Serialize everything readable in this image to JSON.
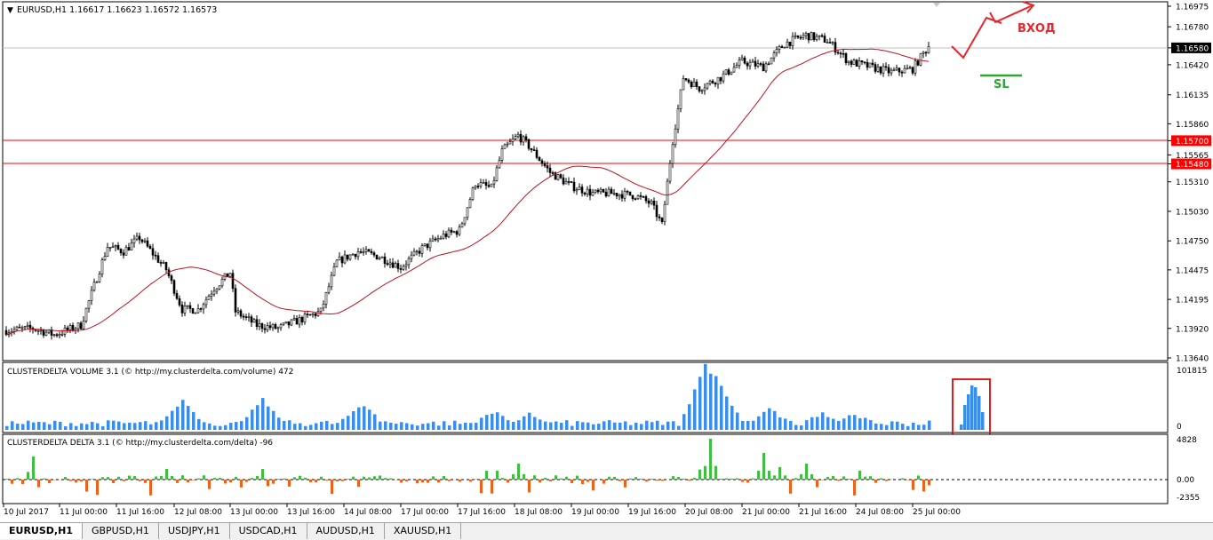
{
  "main_chart": {
    "header_prefix": "▼",
    "header": "EURUSD,H1  1.16617 1.16623 1.16572 1.16573",
    "price_labels": [
      "1.16975",
      "1.16780",
      "1.16580",
      "1.16420",
      "1.16135",
      "1.15860",
      "1.15700",
      "1.15565",
      "1.15480",
      "1.15310",
      "1.15030",
      "1.14750",
      "1.14475",
      "1.14195",
      "1.13920",
      "1.13640"
    ],
    "current_price": "1.16580",
    "level_lines": [
      {
        "value": "1.15700",
        "color": "#ff0000"
      },
      {
        "value": "1.15480",
        "color": "#ff0000"
      }
    ],
    "annotations": {
      "entry_label": "ВХОД",
      "entry_color": "#e8262d",
      "sl_label": "SL",
      "sl_color": "#2aa832"
    },
    "colors": {
      "candle": "#000000",
      "ma": "#c0111f",
      "grid": "#c8c8c8"
    }
  },
  "volume_panel": {
    "header": "CLUSTERDELTA VOLUME 3.1 (© http://my.clusterdelta.com/volume) 472",
    "scale_labels": [
      "101815",
      "0"
    ],
    "bar_color": "#3a8ee8",
    "highlight_box_color": "#e02020"
  },
  "delta_panel": {
    "header": "CLUSTERDELTA DELTA 3.1 (© http://my.clusterdelta.com/delta) -96",
    "scale_labels": [
      "4828",
      "0.00",
      "-2355"
    ],
    "positive_color": "#3fbf3f",
    "negative_color": "#f06018"
  },
  "time_axis": {
    "labels": [
      "10 Jul 2017",
      "11 Jul 00:00",
      "11 Jul 16:00",
      "12 Jul 08:00",
      "13 Jul 00:00",
      "13 Jul 16:00",
      "14 Jul 08:00",
      "17 Jul 00:00",
      "17 Jul 16:00",
      "18 Jul 08:00",
      "19 Jul 00:00",
      "19 Jul 16:00",
      "20 Jul 08:00",
      "21 Jul 00:00",
      "21 Jul 16:00",
      "24 Jul 08:00",
      "25 Jul 00:00"
    ]
  },
  "tabs": [
    "EURUSD,H1",
    "GBPUSD,H1",
    "USDJPY,H1",
    "USDCAD,H1",
    "AUDUSD,H1",
    "XAUUSD,H1"
  ],
  "active_tab": "EURUSD,H1"
}
